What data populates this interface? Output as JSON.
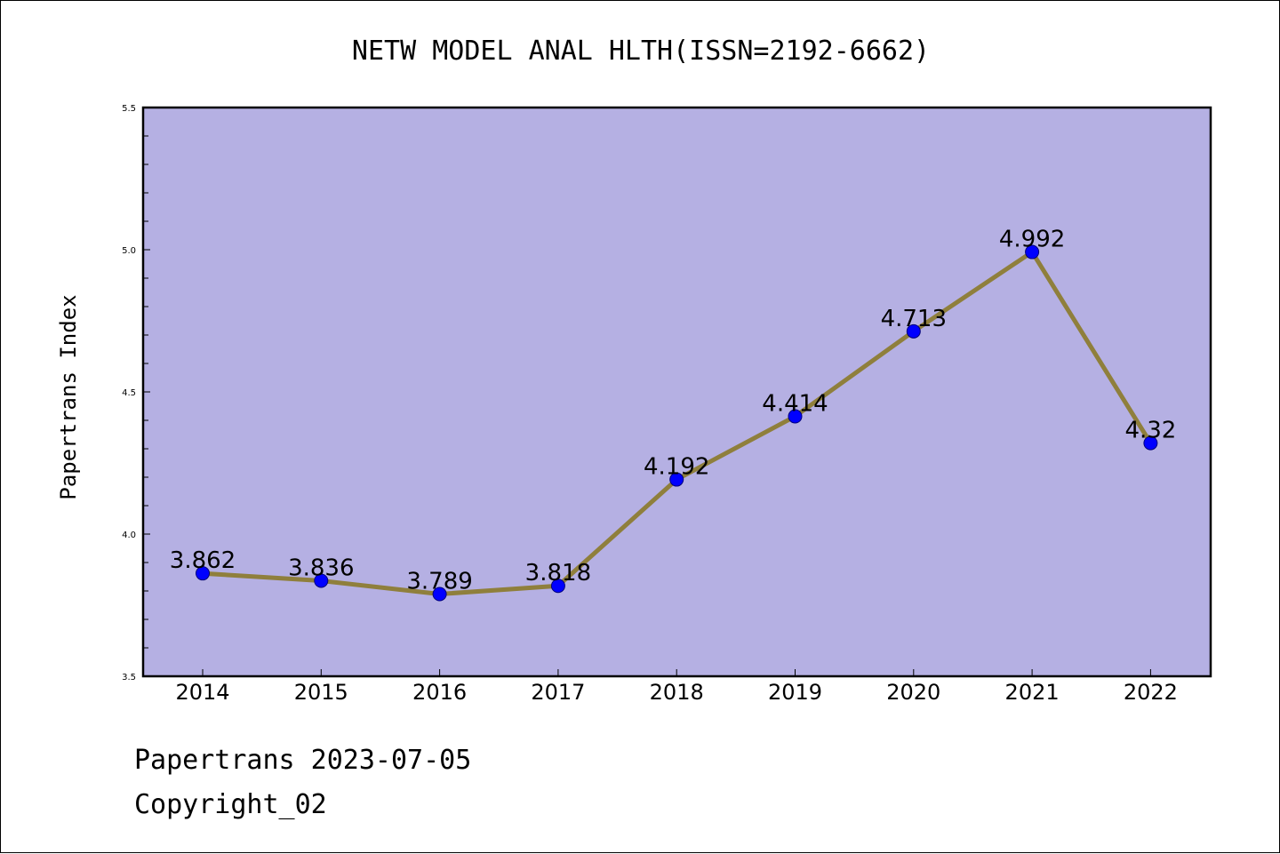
{
  "chart_data": {
    "type": "line",
    "title": "NETW MODEL ANAL HLTH(ISSN=2192-6662)",
    "xlabel": "",
    "ylabel": "Papertrans Index",
    "categories": [
      "2014",
      "2015",
      "2016",
      "2017",
      "2018",
      "2019",
      "2020",
      "2021",
      "2022"
    ],
    "series": [
      {
        "values": [
          3.862,
          3.836,
          3.789,
          3.818,
          4.192,
          4.414,
          4.713,
          4.992,
          4.32
        ]
      }
    ],
    "data_labels": [
      "3.862",
      "3.836",
      "3.789",
      "3.818",
      "4.192",
      "4.414",
      "4.713",
      "4.992",
      "4.32"
    ],
    "ylim": [
      3.5,
      5.5
    ],
    "yticks": [
      "3.5",
      "4.0",
      "4.5",
      "5.0",
      "5.5"
    ],
    "grid": false,
    "colors": {
      "plot_background": "#b5b0e3",
      "line": "#8f7f3c",
      "marker": "#0000ff",
      "marker_edge": "#00007a"
    }
  },
  "footer": {
    "line1": "Papertrans 2023-07-05",
    "line2": "Copyright_02"
  }
}
